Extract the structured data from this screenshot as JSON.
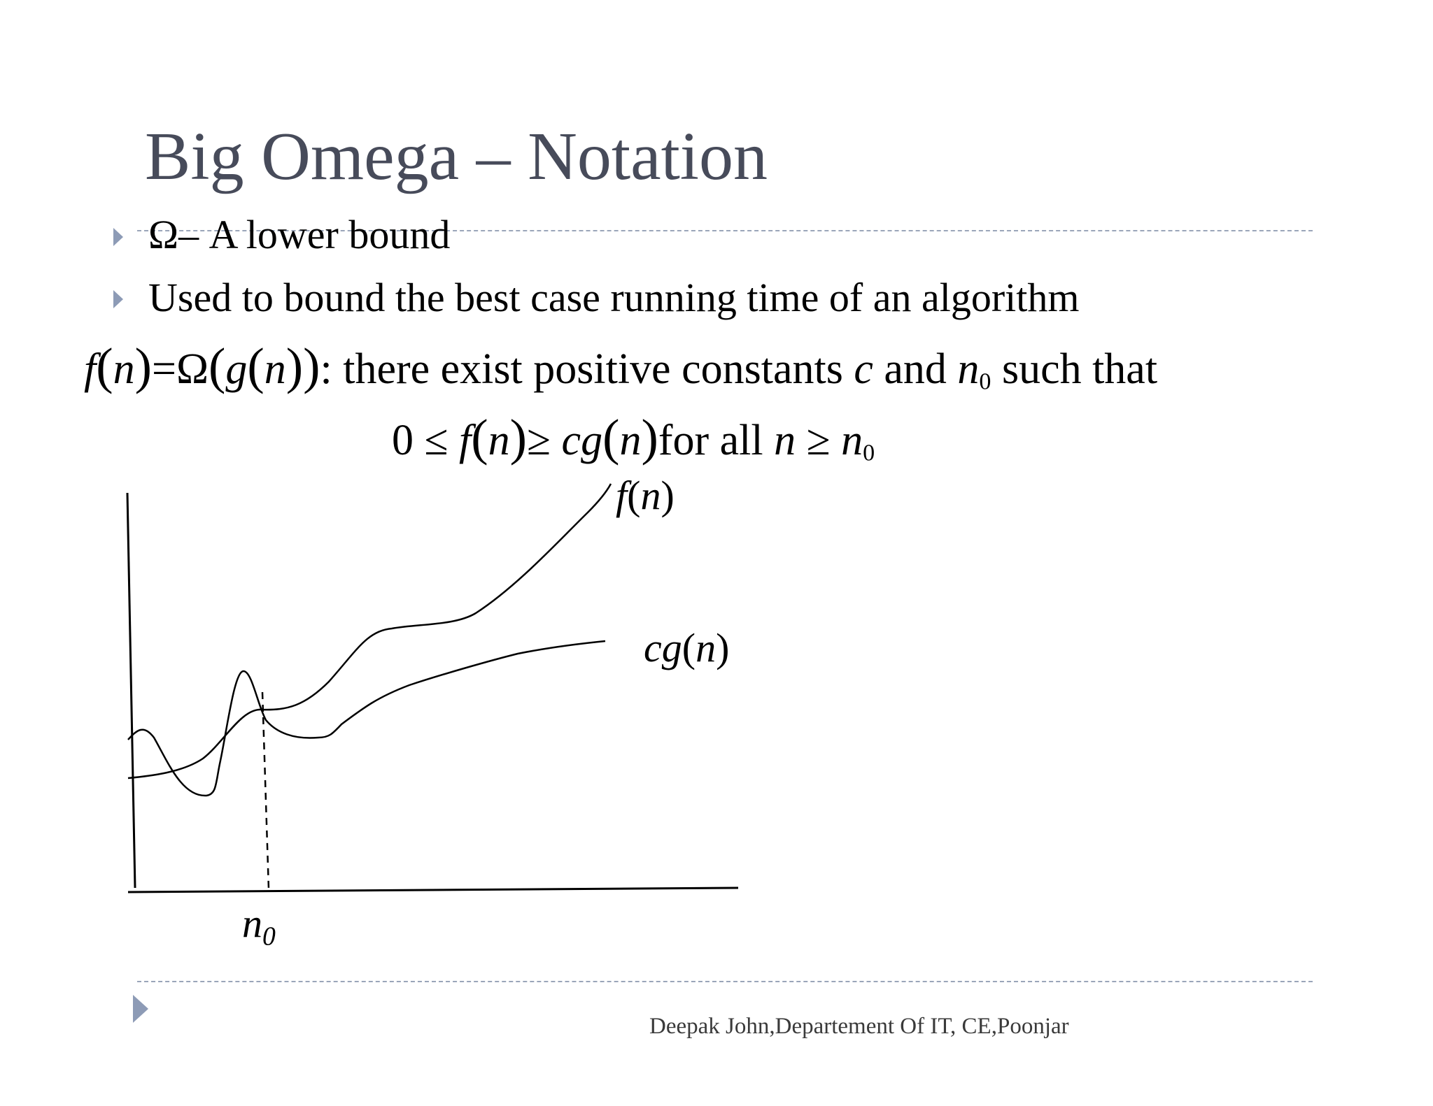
{
  "slide": {
    "title": "Big Omega – Notation",
    "bullets": [
      "Ω– A lower bound",
      "Used to bound the best case running time of an algorithm"
    ]
  },
  "definition": {
    "lhs_f": "f",
    "lhs_n": "n",
    "equals_omega": "=Ω",
    "g": "g",
    "n": "n",
    "colon": ":",
    "text1": " there exist positive constants ",
    "c": "c",
    "and": " and ",
    "n0_base": "n",
    "n0_sub": "0",
    "text2": " such that"
  },
  "condition": {
    "zero_le": "0 ≤ ",
    "f": "f",
    "n1": "n",
    "ge_c": "≥ ",
    "c": "c",
    "g": "g",
    "n2": "n",
    "for_all": "for all ",
    "n3": "n",
    "ge": " ≥ ",
    "n0_base": "n",
    "n0_sub": "0"
  },
  "graph": {
    "label_fn_f": "f",
    "label_fn_open": "(",
    "label_fn_n": "n",
    "label_fn_close": ")",
    "label_cgn_cg": "cg",
    "label_cgn_open": "(",
    "label_cgn_n": "n",
    "label_cgn_close": ")",
    "label_n0_base": "n",
    "label_n0_sub": "0"
  },
  "footer": {
    "credit": "Deepak John,Departement Of IT, CE,Poonjar"
  }
}
